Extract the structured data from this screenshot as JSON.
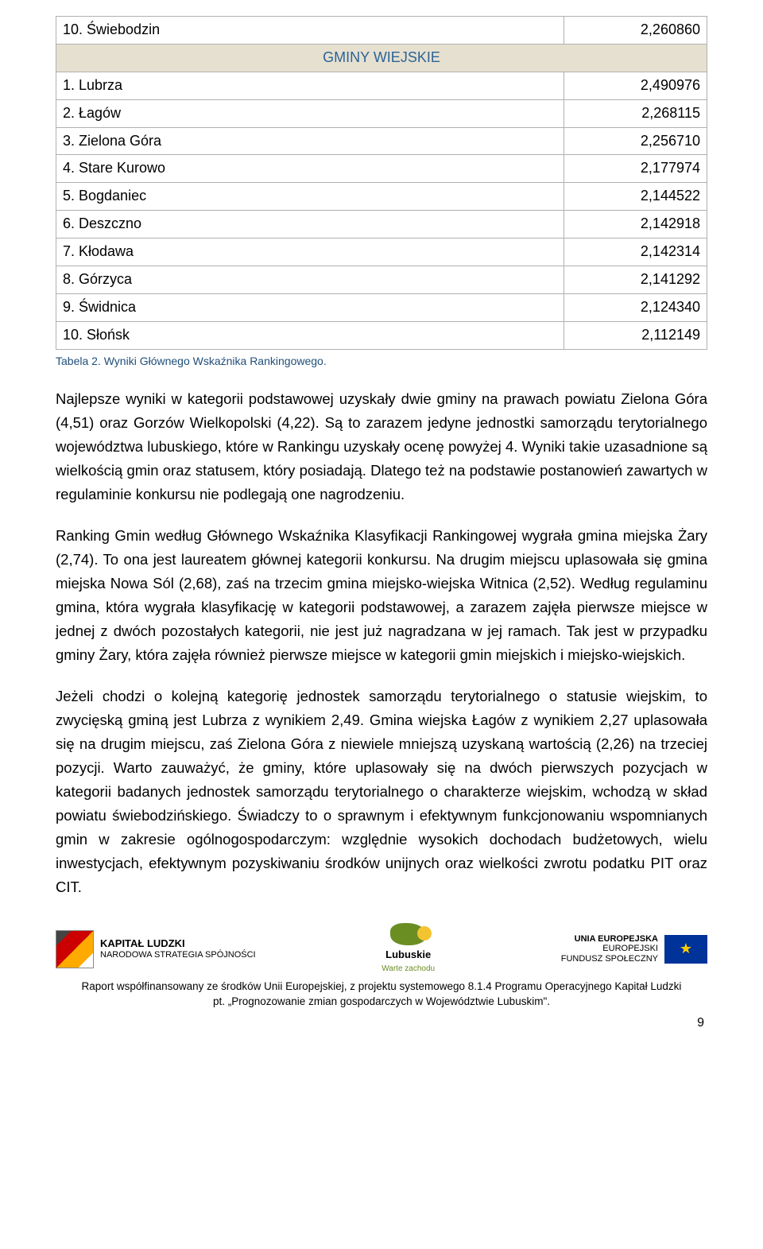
{
  "table": {
    "rows_top": [
      {
        "label": "10. Świebodzin",
        "value": "2,260860"
      }
    ],
    "section_header": "GMINY WIEJSKIE",
    "rows_bottom": [
      {
        "label": "1. Lubrza",
        "value": "2,490976"
      },
      {
        "label": "2. Łagów",
        "value": "2,268115"
      },
      {
        "label": "3. Zielona Góra",
        "value": "2,256710"
      },
      {
        "label": "4. Stare Kurowo",
        "value": "2,177974"
      },
      {
        "label": "5. Bogdaniec",
        "value": "2,144522"
      },
      {
        "label": "6. Deszczno",
        "value": "2,142918"
      },
      {
        "label": "7. Kłodawa",
        "value": "2,142314"
      },
      {
        "label": "8. Górzyca",
        "value": "2,141292"
      },
      {
        "label": "9. Świdnica",
        "value": "2,124340"
      },
      {
        "label": "10. Słońsk",
        "value": "2,112149"
      }
    ],
    "header_bg": "#e6e0d0",
    "header_color": "#2a6496",
    "border_color": "#b0b0b0"
  },
  "caption": "Tabela 2. Wyniki Głównego Wskaźnika Rankingowego.",
  "paragraphs": {
    "p1": "Najlepsze wyniki w kategorii podstawowej uzyskały dwie gminy na prawach powiatu Zielona Góra (4,51) oraz Gorzów Wielkopolski (4,22). Są to zarazem jedyne jednostki samorządu terytorialnego województwa lubuskiego, które w Rankingu uzyskały ocenę powyżej 4. Wyniki takie uzasadnione są wielkością gmin oraz statusem, który posiadają. Dlatego też na podstawie postanowień zawartych w regulaminie konkursu nie podlegają one nagrodzeniu.",
    "p2": "Ranking Gmin według Głównego Wskaźnika Klasyfikacji Rankingowej wygrała gmina miejska Żary (2,74). To ona jest laureatem głównej kategorii konkursu. Na drugim miejscu uplasowała się gmina miejska Nowa Sól (2,68), zaś na trzecim gmina miejsko-wiejska Witnica (2,52). Według regulaminu gmina, która wygrała klasyfikację w kategorii podstawowej, a zarazem zajęła pierwsze miejsce w jednej z dwóch pozostałych kategorii, nie jest już nagradzana w jej ramach. Tak jest w przypadku gminy Żary, która zajęła również pierwsze miejsce w kategorii gmin miejskich i miejsko-wiejskich.",
    "p3": "Jeżeli chodzi o kolejną kategorię jednostek samorządu terytorialnego o statusie wiejskim, to zwycięską gminą jest Lubrza z wynikiem 2,49. Gmina wiejska Łagów z wynikiem 2,27 uplasowała się na drugim miejscu, zaś Zielona Góra z niewiele mniejszą uzyskaną wartością (2,26) na trzeciej pozycji. Warto zauważyć, że gminy, które uplasowały się na dwóch pierwszych pozycjach w kategorii badanych jednostek samorządu terytorialnego o charakterze wiejskim, wchodzą w skład powiatu świebodzińskiego. Świadczy to o sprawnym i efektywnym funkcjonowaniu wspomnianych gmin w zakresie ogólnogospodarczym: względnie wysokich dochodach budżetowych, wielu inwestycjach, efektywnym pozyskiwaniu środków unijnych oraz wielkości zwrotu podatku PIT oraz CIT."
  },
  "footer": {
    "kapital_title": "KAPITAŁ LUDZKI",
    "kapital_sub": "NARODOWA STRATEGIA SPÓJNOŚCI",
    "lubuskie_title": "Lubuskie",
    "lubuskie_sub": "Warte zachodu",
    "eu_title": "UNIA EUROPEJSKA",
    "eu_sub1": "EUROPEJSKI",
    "eu_sub2": "FUNDUSZ SPOŁECZNY",
    "line1": "Raport współfinansowany ze środków Unii Europejskiej, z projektu systemowego 8.1.4 Programu Operacyjnego Kapitał Ludzki",
    "line2": "pt. „Prognozowanie zmian gospodarczych w Województwie Lubuskim\"."
  },
  "page_number": "9"
}
